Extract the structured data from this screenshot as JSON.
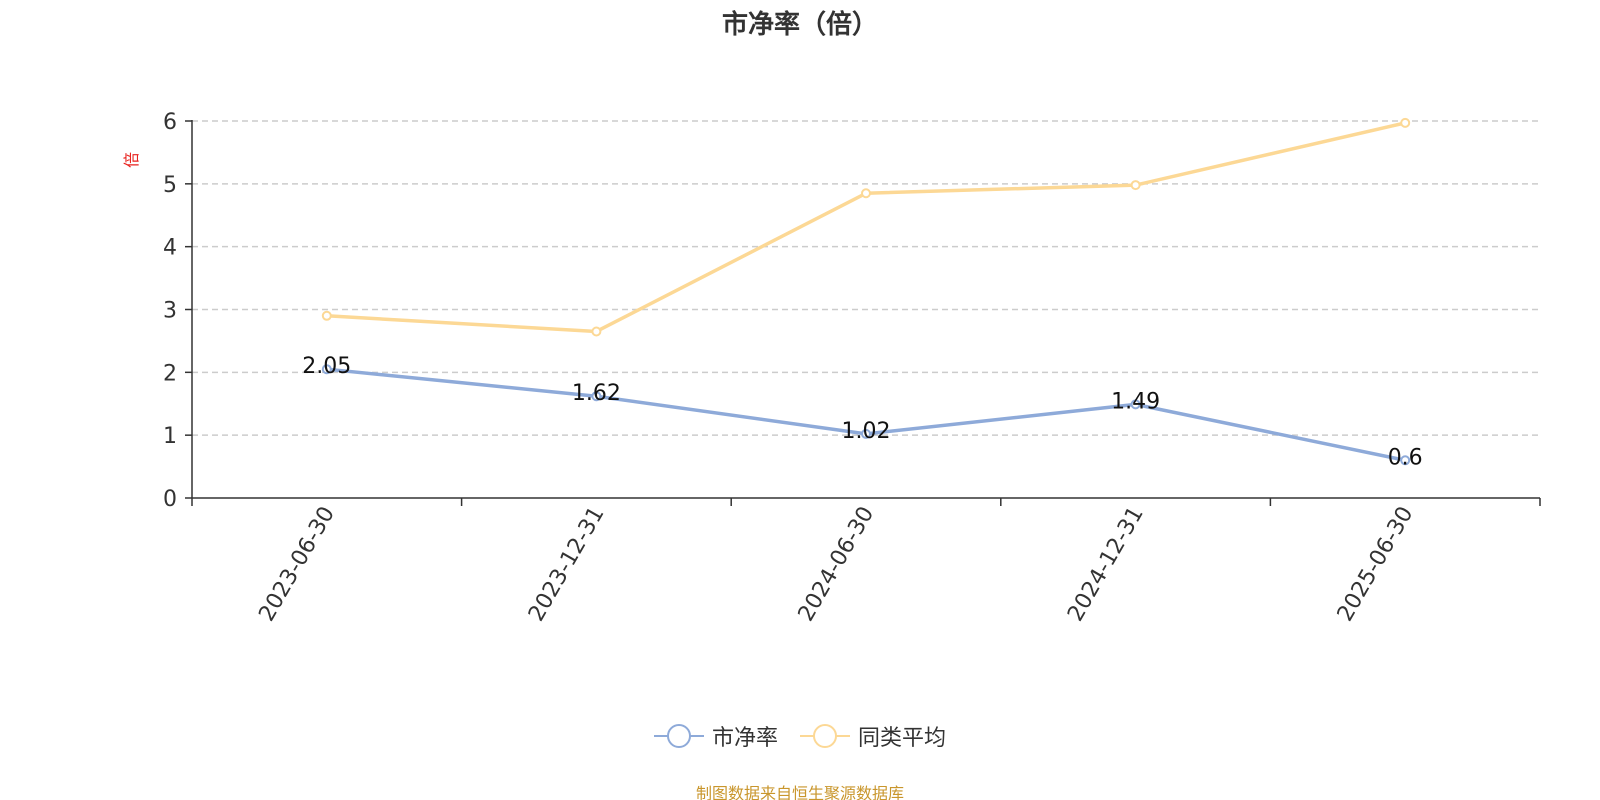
{
  "chart_data": {
    "type": "line",
    "title": "市净率（倍）",
    "ylabel": "倍",
    "xlabel": "",
    "categories": [
      "2023-06-30",
      "2023-12-31",
      "2024-06-30",
      "2024-12-31",
      "2025-06-30"
    ],
    "ylim": [
      0,
      6
    ],
    "yticks": [
      "0",
      "1",
      "2",
      "3",
      "4",
      "5",
      "6"
    ],
    "grid": true,
    "legend_position": "bottom",
    "series": [
      {
        "name": "市净率",
        "values": [
          2.05,
          1.62,
          1.02,
          1.49,
          0.6
        ],
        "data_labels": [
          "2.05",
          "1.62",
          "1.02",
          "1.49",
          "0.6"
        ],
        "color": "#8eaad9"
      },
      {
        "name": "同类平均",
        "values": [
          2.9,
          2.65,
          4.85,
          4.98,
          5.97
        ],
        "color": "#fcd895"
      }
    ]
  },
  "colors": {
    "title": "#333333",
    "axis": "#333333",
    "grid": "#cccccc",
    "ylabel": "#e8231f",
    "source": "#c9962c"
  },
  "source_note": "制图数据来自恒生聚源数据库"
}
